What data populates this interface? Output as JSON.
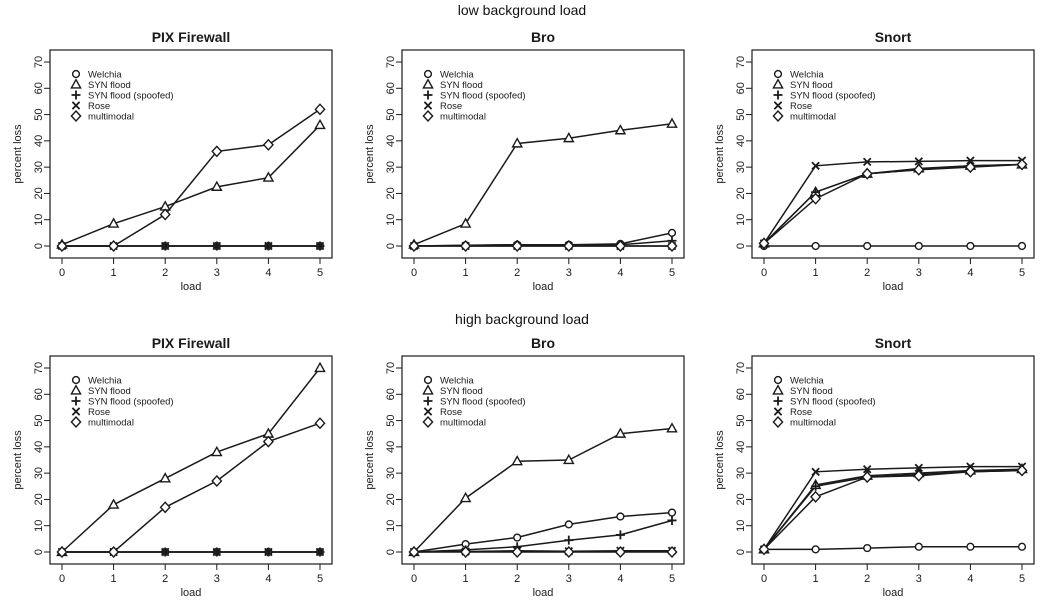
{
  "sections": [
    {
      "title": "low background load"
    },
    {
      "title": "high background load"
    }
  ],
  "colors": {
    "ink": "#1a1a1a",
    "background": "#ffffff"
  },
  "chart_data": [
    {
      "type": "line",
      "title": "PIX Firewall",
      "xlabel": "load",
      "ylabel": "percent loss",
      "x": [
        0,
        1,
        2,
        3,
        4,
        5
      ],
      "xlim": [
        0,
        5
      ],
      "ylim": [
        0,
        70
      ],
      "xticks": [
        "0",
        "1",
        "2",
        "3",
        "4",
        "5"
      ],
      "yticks": [
        "0",
        "10",
        "20",
        "30",
        "40",
        "50",
        "60",
        "70"
      ],
      "legend_position": "top-left",
      "series": [
        {
          "name": "Welchia",
          "marker": "circle",
          "values": [
            0,
            0,
            0,
            0,
            0,
            0
          ]
        },
        {
          "name": "SYN flood",
          "marker": "triangle",
          "values": [
            0.5,
            8.5,
            15,
            22.5,
            26,
            46
          ]
        },
        {
          "name": "SYN flood (spoofed)",
          "marker": "plus",
          "values": [
            0,
            0,
            0,
            0,
            0,
            0
          ]
        },
        {
          "name": "Rose",
          "marker": "cross",
          "values": [
            0,
            0,
            0,
            0,
            0,
            0
          ]
        },
        {
          "name": "multimodal",
          "marker": "diamond",
          "values": [
            0,
            0,
            12,
            36,
            38.5,
            52
          ]
        }
      ]
    },
    {
      "type": "line",
      "title": "Bro",
      "xlabel": "load",
      "ylabel": "percent loss",
      "x": [
        0,
        1,
        2,
        3,
        4,
        5
      ],
      "xlim": [
        0,
        5
      ],
      "ylim": [
        0,
        70
      ],
      "xticks": [
        "0",
        "1",
        "2",
        "3",
        "4",
        "5"
      ],
      "yticks": [
        "0",
        "10",
        "20",
        "30",
        "40",
        "50",
        "60",
        "70"
      ],
      "legend_position": "top-left",
      "series": [
        {
          "name": "Welchia",
          "marker": "circle",
          "values": [
            0,
            0.3,
            0.5,
            0.5,
            0.8,
            5
          ]
        },
        {
          "name": "SYN flood",
          "marker": "triangle",
          "values": [
            0.5,
            8.5,
            39,
            41,
            44,
            46.5
          ]
        },
        {
          "name": "SYN flood (spoofed)",
          "marker": "plus",
          "values": [
            0,
            0.2,
            0.5,
            0.3,
            0.5,
            2
          ]
        },
        {
          "name": "Rose",
          "marker": "cross",
          "values": [
            0,
            0,
            0,
            0,
            0,
            0
          ]
        },
        {
          "name": "multimodal",
          "marker": "diamond",
          "values": [
            0,
            0,
            0,
            0,
            0,
            0
          ]
        }
      ]
    },
    {
      "type": "line",
      "title": "Snort",
      "xlabel": "load",
      "ylabel": "percent loss",
      "x": [
        0,
        1,
        2,
        3,
        4,
        5
      ],
      "xlim": [
        0,
        5
      ],
      "ylim": [
        0,
        70
      ],
      "xticks": [
        "0",
        "1",
        "2",
        "3",
        "4",
        "5"
      ],
      "yticks": [
        "0",
        "10",
        "20",
        "30",
        "40",
        "50",
        "60",
        "70"
      ],
      "legend_position": "top-left",
      "series": [
        {
          "name": "Welchia",
          "marker": "circle",
          "values": [
            0,
            0,
            0,
            0,
            0,
            0
          ]
        },
        {
          "name": "SYN flood",
          "marker": "triangle",
          "values": [
            1,
            20.5,
            27.5,
            29.5,
            30.5,
            31
          ]
        },
        {
          "name": "SYN flood (spoofed)",
          "marker": "plus",
          "values": [
            1,
            20.5,
            27.5,
            29,
            30.5,
            31
          ]
        },
        {
          "name": "Rose",
          "marker": "cross",
          "values": [
            1,
            30.5,
            32,
            32.2,
            32.5,
            32.5
          ]
        },
        {
          "name": "multimodal",
          "marker": "diamond",
          "values": [
            1,
            18,
            27.5,
            29,
            30,
            31
          ]
        }
      ]
    },
    {
      "type": "line",
      "title": "PIX Firewall",
      "xlabel": "load",
      "ylabel": "percent loss",
      "x": [
        0,
        1,
        2,
        3,
        4,
        5
      ],
      "xlim": [
        0,
        5
      ],
      "ylim": [
        0,
        70
      ],
      "xticks": [
        "0",
        "1",
        "2",
        "3",
        "4",
        "5"
      ],
      "yticks": [
        "0",
        "10",
        "20",
        "30",
        "40",
        "50",
        "60",
        "70"
      ],
      "legend_position": "top-left",
      "series": [
        {
          "name": "Welchia",
          "marker": "circle",
          "values": [
            0,
            0,
            0,
            0,
            0,
            0
          ]
        },
        {
          "name": "SYN flood",
          "marker": "triangle",
          "values": [
            0,
            18,
            28,
            38,
            45,
            70
          ]
        },
        {
          "name": "SYN flood (spoofed)",
          "marker": "plus",
          "values": [
            0,
            0,
            0,
            0,
            0,
            0
          ]
        },
        {
          "name": "Rose",
          "marker": "cross",
          "values": [
            0,
            0,
            0,
            0,
            0,
            0
          ]
        },
        {
          "name": "multimodal",
          "marker": "diamond",
          "values": [
            0,
            0,
            17,
            27,
            42,
            49
          ]
        }
      ]
    },
    {
      "type": "line",
      "title": "Bro",
      "xlabel": "load",
      "ylabel": "percent loss",
      "x": [
        0,
        1,
        2,
        3,
        4,
        5
      ],
      "xlim": [
        0,
        5
      ],
      "ylim": [
        0,
        70
      ],
      "xticks": [
        "0",
        "1",
        "2",
        "3",
        "4",
        "5"
      ],
      "yticks": [
        "0",
        "10",
        "20",
        "30",
        "40",
        "50",
        "60",
        "70"
      ],
      "legend_position": "top-left",
      "series": [
        {
          "name": "Welchia",
          "marker": "circle",
          "values": [
            0,
            3,
            5.5,
            10.5,
            13.5,
            15
          ]
        },
        {
          "name": "SYN flood",
          "marker": "triangle",
          "values": [
            0,
            20.5,
            34.5,
            35,
            45,
            47
          ]
        },
        {
          "name": "SYN flood (spoofed)",
          "marker": "plus",
          "values": [
            0,
            0.8,
            2,
            4.5,
            6.5,
            12
          ]
        },
        {
          "name": "Rose",
          "marker": "cross",
          "values": [
            0,
            0.2,
            0.5,
            0.3,
            0.5,
            0.5
          ]
        },
        {
          "name": "multimodal",
          "marker": "diamond",
          "values": [
            0,
            0,
            0,
            0,
            0,
            0
          ]
        }
      ]
    },
    {
      "type": "line",
      "title": "Snort",
      "xlabel": "load",
      "ylabel": "percent loss",
      "x": [
        0,
        1,
        2,
        3,
        4,
        5
      ],
      "xlim": [
        0,
        5
      ],
      "ylim": [
        0,
        70
      ],
      "xticks": [
        "0",
        "1",
        "2",
        "3",
        "4",
        "5"
      ],
      "yticks": [
        "0",
        "10",
        "20",
        "30",
        "40",
        "50",
        "60",
        "70"
      ],
      "legend_position": "top-left",
      "series": [
        {
          "name": "Welchia",
          "marker": "circle",
          "values": [
            1,
            1,
            1.5,
            2,
            2,
            2
          ]
        },
        {
          "name": "SYN flood",
          "marker": "triangle",
          "values": [
            1,
            25.5,
            29,
            30,
            31,
            31.5
          ]
        },
        {
          "name": "SYN flood (spoofed)",
          "marker": "plus",
          "values": [
            1,
            25,
            28.5,
            29.5,
            30.5,
            31
          ]
        },
        {
          "name": "Rose",
          "marker": "cross",
          "values": [
            1,
            30.5,
            31.5,
            32,
            32.5,
            32.5
          ]
        },
        {
          "name": "multimodal",
          "marker": "diamond",
          "values": [
            1,
            21,
            28.5,
            29,
            30.5,
            31
          ]
        }
      ]
    }
  ]
}
